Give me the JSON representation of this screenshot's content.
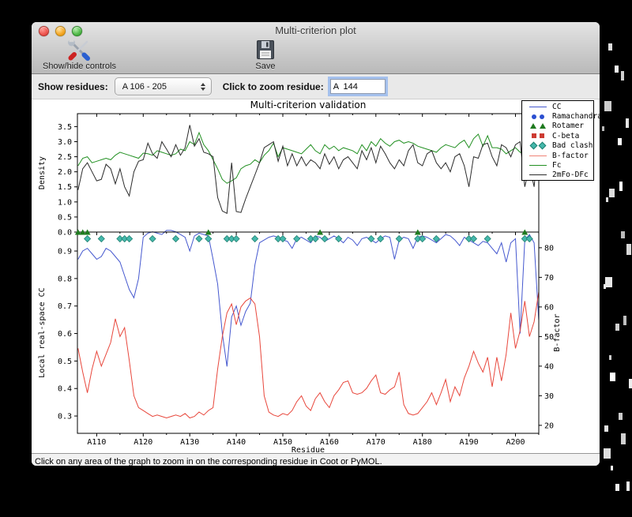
{
  "window": {
    "title": "Multi-criterion plot",
    "traffic_lights": [
      {
        "name": "close",
        "color": "#ee544e"
      },
      {
        "name": "minimize",
        "color": "#f5a623"
      },
      {
        "name": "zoom",
        "color": "#50b948"
      }
    ]
  },
  "toolbar": {
    "show_hide_label": "Show/hide controls",
    "show_hide_icon": "tools-icon",
    "save_label": "Save",
    "save_icon": "floppy-disk-icon"
  },
  "controls": {
    "show_residues_label": "Show residues:",
    "show_residues_value": "A 106 - 205",
    "stepper_icon": "up-down-arrows-icon",
    "zoom_residue_label": "Click to zoom residue:",
    "zoom_residue_value": "A  144"
  },
  "status_bar": {
    "text": "Click on any area of the graph to zoom in on the corresponding residue in Coot or PyMOL."
  },
  "legend": {
    "position": "upper-right",
    "items": [
      {
        "label": "CC",
        "type": "line",
        "color": "#4558cf"
      },
      {
        "label": "Ramachandran",
        "type": "scatter-circle",
        "color": "#2b4fd0"
      },
      {
        "label": "Rotamer",
        "type": "scatter-triangle",
        "color": "#1f7a1f"
      },
      {
        "label": "C-beta",
        "type": "scatter-square",
        "color": "#cd3b32"
      },
      {
        "label": "Bad clash",
        "type": "scatter-diamond",
        "color": "#45b8ac"
      },
      {
        "label": "B-factor",
        "type": "line",
        "color": "#ef8276"
      },
      {
        "label": "Fc",
        "type": "line",
        "color": "#229022"
      },
      {
        "label": "2mFo-DFc",
        "type": "line",
        "color": "#2b2b2b"
      }
    ]
  },
  "chart_data": [
    {
      "type": "line",
      "title": "Multi-criterion validation",
      "ylabel": "Density",
      "ylabel_color": "#000000",
      "ylim": [
        0,
        3.93
      ],
      "yticks": [
        "0.0",
        "0.5",
        "1.0",
        "1.5",
        "2.0",
        "2.5",
        "3.0",
        "3.5"
      ],
      "x_first_residue": 106,
      "x_last_residue": 205,
      "grid": false,
      "series": [
        {
          "name": "Fc",
          "color": "#229022",
          "values": [
            2.2,
            2.45,
            2.5,
            2.3,
            2.35,
            2.4,
            2.45,
            2.4,
            2.55,
            2.65,
            2.6,
            2.55,
            2.5,
            2.45,
            2.62,
            2.6,
            2.55,
            2.7,
            2.65,
            2.6,
            2.55,
            2.6,
            2.75,
            2.7,
            3.0,
            2.9,
            3.3,
            2.9,
            2.7,
            2.4,
            2.1,
            1.75,
            1.62,
            1.7,
            1.8,
            2.1,
            2.2,
            2.25,
            2.4,
            2.3,
            2.55,
            2.7,
            2.95,
            2.5,
            2.8,
            2.75,
            2.7,
            2.65,
            2.6,
            2.75,
            2.9,
            2.7,
            2.6,
            2.9,
            2.75,
            2.85,
            2.7,
            2.8,
            2.75,
            2.7,
            2.6,
            2.9,
            2.7,
            3.0,
            2.85,
            3.1,
            2.95,
            2.85,
            3.0,
            3.05,
            2.95,
            3.0,
            2.95,
            2.85,
            2.8,
            2.75,
            2.7,
            2.65,
            2.8,
            2.9,
            2.85,
            2.8,
            2.95,
            3.05,
            2.8,
            3.1,
            3.25,
            2.85,
            3.2,
            2.8,
            2.8,
            2.75,
            2.6,
            2.7,
            2.8,
            2.65,
            2.6,
            2.7,
            2.65,
            2.75
          ]
        },
        {
          "name": "2mFo-DFc",
          "color": "#2b2b2b",
          "values": [
            1.4,
            2.1,
            2.3,
            2.0,
            1.7,
            1.75,
            2.25,
            2.1,
            1.6,
            2.1,
            1.5,
            1.2,
            2.0,
            2.35,
            2.4,
            2.95,
            2.6,
            2.45,
            3.0,
            2.75,
            2.5,
            2.9,
            2.55,
            2.8,
            3.55,
            2.85,
            3.1,
            2.65,
            2.6,
            2.5,
            1.15,
            0.7,
            0.62,
            2.3,
            0.68,
            0.65,
            1.1,
            1.5,
            1.9,
            2.3,
            2.8,
            2.9,
            3.0,
            2.35,
            2.85,
            2.2,
            2.6,
            2.2,
            2.5,
            2.2,
            2.4,
            2.3,
            2.1,
            2.6,
            2.25,
            2.5,
            2.1,
            2.4,
            2.5,
            2.3,
            2.1,
            2.7,
            2.4,
            2.8,
            2.3,
            2.85,
            2.6,
            2.3,
            2.1,
            2.4,
            2.2,
            2.7,
            2.9,
            2.3,
            2.2,
            2.6,
            2.7,
            2.3,
            2.1,
            2.3,
            2.0,
            2.5,
            2.6,
            2.2,
            1.5,
            2.5,
            2.45,
            2.9,
            2.95,
            2.5,
            2.2,
            2.9,
            2.8,
            2.5,
            2.9,
            3.0,
            1.5,
            2.2,
            1.5,
            3.1
          ]
        }
      ]
    },
    {
      "type": "line",
      "xlabel": "Residue",
      "xticks": [
        110,
        120,
        130,
        140,
        150,
        160,
        170,
        180,
        190,
        200
      ],
      "xtick_labels": [
        "A110",
        "A120",
        "A130",
        "A140",
        "A150",
        "A160",
        "A170",
        "A180",
        "A190",
        "A200"
      ],
      "x_first_residue": 106,
      "x_last_residue": 205,
      "ylabel_left": "Local real-space CC",
      "ylabel_left_color": "#4558cf",
      "ylim_left": [
        0.237,
        0.969
      ],
      "yticks_left": [
        "0.3",
        "0.4",
        "0.5",
        "0.6",
        "0.7",
        "0.8",
        "0.9"
      ],
      "ylabel_right": "B-factor",
      "ylabel_right_color": "#e8473c",
      "ylim_right": [
        17.3,
        85.3
      ],
      "yticks_right": [
        "20",
        "30",
        "40",
        "50",
        "60",
        "70",
        "80"
      ],
      "grid": false,
      "series": [
        {
          "name": "CC",
          "axis": "left",
          "color": "#4558cf",
          "values": [
            0.87,
            0.9,
            0.91,
            0.89,
            0.87,
            0.88,
            0.91,
            0.9,
            0.88,
            0.86,
            0.81,
            0.76,
            0.73,
            0.8,
            0.95,
            0.965,
            0.97,
            0.965,
            0.96,
            0.975,
            0.975,
            0.97,
            0.96,
            0.95,
            0.9,
            0.955,
            0.965,
            0.96,
            0.955,
            0.87,
            0.78,
            0.6,
            0.48,
            0.66,
            0.7,
            0.63,
            0.68,
            0.71,
            0.85,
            0.93,
            0.94,
            0.95,
            0.955,
            0.95,
            0.94,
            0.935,
            0.91,
            0.945,
            0.95,
            0.94,
            0.93,
            0.955,
            0.95,
            0.935,
            0.945,
            0.955,
            0.945,
            0.93,
            0.95,
            0.94,
            0.92,
            0.945,
            0.95,
            0.94,
            0.93,
            0.945,
            0.955,
            0.95,
            0.87,
            0.94,
            0.95,
            0.945,
            0.91,
            0.95,
            0.955,
            0.95,
            0.94,
            0.93,
            0.945,
            0.96,
            0.955,
            0.94,
            0.92,
            0.95,
            0.94,
            0.93,
            0.92,
            0.935,
            0.93,
            0.91,
            0.89,
            0.93,
            0.86,
            0.93,
            0.945,
            0.6,
            0.94,
            0.96,
            0.93,
            0.65
          ]
        },
        {
          "name": "B-factor",
          "axis": "right",
          "color": "#e8473c",
          "values": [
            46,
            38,
            31,
            39,
            45,
            40,
            44,
            48,
            56,
            50,
            53,
            42,
            30,
            26,
            25,
            24,
            23,
            23.5,
            23,
            22.5,
            23,
            23.5,
            23,
            24,
            22.5,
            23,
            24.5,
            23.5,
            25,
            26,
            39,
            50,
            58,
            61,
            54,
            60,
            62,
            63,
            61,
            50,
            30,
            24.5,
            23.5,
            23,
            24,
            23.5,
            25,
            28,
            30,
            26.5,
            25,
            29,
            31,
            28,
            26,
            30,
            32,
            34.5,
            35,
            31,
            30.5,
            31,
            32.5,
            35,
            37,
            31,
            30.5,
            32,
            33,
            38,
            27,
            24,
            23.5,
            24,
            26,
            28,
            31,
            27,
            31,
            35.5,
            28,
            33,
            30,
            36,
            40,
            45,
            41,
            38,
            43,
            33,
            43,
            35,
            44,
            58,
            46,
            52,
            62,
            50,
            55,
            65
          ]
        }
      ],
      "outlier_markers": {
        "rotamer": {
          "color": "#1f7a1f",
          "shape": "triangle",
          "residues": [
            106,
            107,
            108,
            134,
            158,
            179,
            202
          ]
        },
        "bad_clash": {
          "color": "#45b8ac",
          "edge_color": "#1f8070",
          "shape": "diamond",
          "residues": [
            108,
            111,
            115,
            116,
            117,
            122,
            127,
            132,
            134,
            138,
            139,
            140,
            144,
            149,
            150,
            153,
            156,
            157,
            159,
            162,
            169,
            171,
            175,
            179,
            180,
            183,
            190,
            191,
            194,
            202,
            203
          ]
        }
      }
    }
  ]
}
